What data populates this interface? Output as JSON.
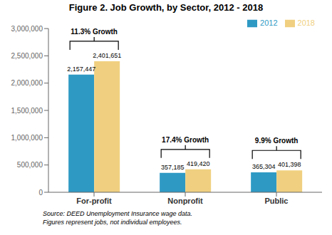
{
  "chart_data": {
    "type": "bar",
    "title": "Figure 2. Job Growth, by Sector, 2012 - 2018",
    "categories": [
      "For-profit",
      "Nonprofit",
      "Public"
    ],
    "series": [
      {
        "name": "2012",
        "color": "#2E9AC4",
        "values": [
          2157447,
          357185,
          365304
        ],
        "value_labels": [
          "2,157,447",
          "357,185",
          "365,304"
        ]
      },
      {
        "name": "2018",
        "color": "#F0D080",
        "values": [
          2401651,
          419420,
          401398
        ],
        "value_labels": [
          "2,401,651",
          "419,420",
          "401,398"
        ]
      }
    ],
    "ylim": [
      0,
      3000000
    ],
    "yticks": [
      0,
      {
        "value": 500000,
        "label": "500,000"
      },
      {
        "value": 1000000,
        "label": "1,000,000"
      },
      {
        "value": 1500000,
        "label": "1,500,000"
      },
      {
        "value": 2000000,
        "label": "2,000,000"
      },
      {
        "value": 2500000,
        "label": "2,500,000"
      },
      {
        "value": 3000000,
        "label": "3,000,000"
      }
    ],
    "annotations": [
      "11.3% Growth",
      "17.4% Growth",
      "9.9% Growth"
    ],
    "source": "Source: DEED Unemployment Insurance wage data.\nFigures represent jobs, not individual employees.",
    "data_labels": true,
    "legend": "upper right",
    "grid": false
  }
}
